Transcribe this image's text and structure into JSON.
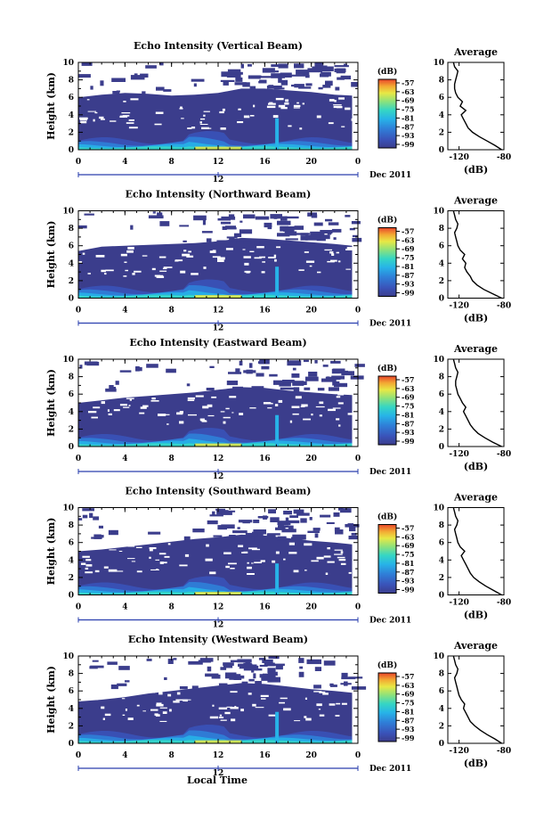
{
  "figure": {
    "xlabel": "Local Time",
    "ylabel": "Height (km)",
    "date_label": "Dec 2011",
    "colorbar_unit": "(dB)",
    "avg_title": "Average",
    "avg_xlabel": "(dB)"
  },
  "chart_data": [
    {
      "type": "heatmap",
      "title": "Echo Intensity (Vertical Beam)",
      "xlabel": "",
      "ylabel": "Height (km)",
      "x_ticks": [
        "0",
        "4",
        "8",
        "12",
        "16",
        "20",
        "0"
      ],
      "y_ticks": [
        "0",
        "2",
        "4",
        "6",
        "8",
        "10"
      ],
      "xlim": [
        0,
        24
      ],
      "ylim": [
        0,
        10
      ],
      "date_tick": "12",
      "date_label": "Dec 2011",
      "colorbar": {
        "unit": "(dB)",
        "ticks": [
          "-57",
          "-63",
          "-69",
          "-75",
          "-81",
          "-87",
          "-93",
          "-99"
        ]
      },
      "cloud_top_km": {
        "x": [
          0,
          2,
          4,
          6,
          8,
          10,
          12,
          14,
          16,
          18,
          20,
          22,
          23.5
        ],
        "y": [
          6.0,
          6.3,
          6.5,
          6.4,
          6.2,
          6.3,
          6.5,
          7.0,
          7.0,
          6.8,
          6.6,
          6.3,
          6.2
        ]
      },
      "average_profile": {
        "xlabel": "(dB)",
        "x_ticks": [
          "-120",
          "-80"
        ],
        "xlim": [
          -130,
          -80
        ],
        "height_km": [
          0,
          0.5,
          1,
          1.5,
          2,
          2.5,
          3,
          3.5,
          4,
          4.5,
          5,
          5.5,
          6,
          6.5,
          7,
          7.5,
          8,
          8.5,
          9,
          9.5,
          10
        ],
        "db": [
          -82,
          -88,
          -95,
          -102,
          -108,
          -112,
          -114,
          -116,
          -118,
          -114,
          -119,
          -117,
          -121,
          -123,
          -124,
          -124,
          -123,
          -122,
          -121,
          -124,
          -125
        ]
      }
    },
    {
      "type": "heatmap",
      "title": "Echo Intensity (Northward Beam)",
      "xlabel": "",
      "ylabel": "Height (km)",
      "x_ticks": [
        "0",
        "4",
        "8",
        "12",
        "16",
        "20",
        "0"
      ],
      "y_ticks": [
        "0",
        "2",
        "4",
        "6",
        "8",
        "10"
      ],
      "xlim": [
        0,
        24
      ],
      "ylim": [
        0,
        10
      ],
      "date_tick": "12",
      "date_label": "Dec 2011",
      "colorbar": {
        "unit": "(dB)",
        "ticks": [
          "-57",
          "-63",
          "-69",
          "-75",
          "-81",
          "-87",
          "-93",
          "-99"
        ]
      },
      "cloud_top_km": {
        "x": [
          0,
          2,
          4,
          6,
          8,
          10,
          12,
          14,
          16,
          18,
          20,
          22,
          23.5
        ],
        "y": [
          5.4,
          5.9,
          6.0,
          6.1,
          6.2,
          6.3,
          6.5,
          6.9,
          6.8,
          6.6,
          6.4,
          6.2,
          6.0
        ]
      },
      "average_profile": {
        "xlabel": "(dB)",
        "x_ticks": [
          "-120",
          "-80"
        ],
        "xlim": [
          -130,
          -80
        ],
        "height_km": [
          0,
          0.5,
          1,
          1.5,
          2,
          2.5,
          3,
          3.5,
          4,
          4.5,
          5,
          5.5,
          6,
          6.5,
          7,
          7.5,
          8,
          8.5,
          9,
          9.5,
          10
        ],
        "db": [
          -82,
          -90,
          -98,
          -104,
          -108,
          -110,
          -113,
          -115,
          -114,
          -117,
          -115,
          -119,
          -121,
          -122,
          -123,
          -124,
          -122,
          -121,
          -123,
          -124,
          -125
        ]
      }
    },
    {
      "type": "heatmap",
      "title": "Echo Intensity (Eastward Beam)",
      "xlabel": "",
      "ylabel": "Height (km)",
      "x_ticks": [
        "0",
        "4",
        "8",
        "12",
        "16",
        "20",
        "0"
      ],
      "y_ticks": [
        "0",
        "2",
        "4",
        "6",
        "8",
        "10"
      ],
      "xlim": [
        0,
        24
      ],
      "ylim": [
        0,
        10
      ],
      "date_tick": "12",
      "date_label": "Dec 2011",
      "colorbar": {
        "unit": "(dB)",
        "ticks": [
          "-57",
          "-63",
          "-69",
          "-75",
          "-81",
          "-87",
          "-93",
          "-99"
        ]
      },
      "cloud_top_km": {
        "x": [
          0,
          2,
          4,
          6,
          8,
          10,
          12,
          14,
          16,
          18,
          20,
          22,
          23.5
        ],
        "y": [
          5.0,
          5.3,
          5.6,
          5.8,
          6.0,
          6.2,
          6.5,
          6.8,
          6.7,
          6.4,
          6.2,
          6.0,
          5.9
        ]
      },
      "average_profile": {
        "xlabel": "(dB)",
        "x_ticks": [
          "-120",
          "-80"
        ],
        "xlim": [
          -130,
          -80
        ],
        "height_km": [
          0,
          0.5,
          1,
          1.5,
          2,
          2.5,
          3,
          3.5,
          4,
          4.5,
          5,
          5.5,
          6,
          6.5,
          7,
          7.5,
          8,
          8.5,
          9,
          9.5,
          10
        ],
        "db": [
          -82,
          -90,
          -97,
          -103,
          -107,
          -110,
          -112,
          -114,
          -116,
          -114,
          -117,
          -119,
          -121,
          -122,
          -123,
          -123,
          -122,
          -121,
          -123,
          -124,
          -125
        ]
      }
    },
    {
      "type": "heatmap",
      "title": "Echo Intensity (Southward Beam)",
      "xlabel": "",
      "ylabel": "Height (km)",
      "x_ticks": [
        "0",
        "4",
        "8",
        "12",
        "16",
        "20",
        "0"
      ],
      "y_ticks": [
        "0",
        "2",
        "4",
        "6",
        "8",
        "10"
      ],
      "xlim": [
        0,
        24
      ],
      "ylim": [
        0,
        10
      ],
      "date_tick": "12",
      "date_label": "Dec 2011",
      "colorbar": {
        "unit": "(dB)",
        "ticks": [
          "-57",
          "-63",
          "-69",
          "-75",
          "-81",
          "-87",
          "-93",
          "-99"
        ]
      },
      "cloud_top_km": {
        "x": [
          0,
          2,
          4,
          6,
          8,
          10,
          12,
          14,
          16,
          18,
          20,
          22,
          23.5
        ],
        "y": [
          5.0,
          5.2,
          5.5,
          5.8,
          6.1,
          6.4,
          6.6,
          6.9,
          6.8,
          6.5,
          6.2,
          6.0,
          5.8
        ]
      },
      "average_profile": {
        "xlabel": "(dB)",
        "x_ticks": [
          "-120",
          "-80"
        ],
        "xlim": [
          -130,
          -80
        ],
        "height_km": [
          0,
          0.5,
          1,
          1.5,
          2,
          2.5,
          3,
          3.5,
          4,
          4.5,
          5,
          5.5,
          6,
          6.5,
          7,
          7.5,
          8,
          8.5,
          9,
          9.5,
          10
        ],
        "db": [
          -82,
          -89,
          -96,
          -102,
          -107,
          -110,
          -112,
          -114,
          -116,
          -118,
          -115,
          -119,
          -121,
          -122,
          -123,
          -124,
          -122,
          -121,
          -123,
          -124,
          -125
        ]
      }
    },
    {
      "type": "heatmap",
      "title": "Echo Intensity (Westward Beam)",
      "xlabel": "Local Time",
      "ylabel": "Height (km)",
      "x_ticks": [
        "0",
        "4",
        "8",
        "12",
        "16",
        "20",
        "0"
      ],
      "y_ticks": [
        "0",
        "2",
        "4",
        "6",
        "8",
        "10"
      ],
      "xlim": [
        0,
        24
      ],
      "ylim": [
        0,
        10
      ],
      "date_tick": "12",
      "date_label": "Dec 2011",
      "colorbar": {
        "unit": "(dB)",
        "ticks": [
          "-57",
          "-63",
          "-69",
          "-75",
          "-81",
          "-87",
          "-93",
          "-99"
        ]
      },
      "cloud_top_km": {
        "x": [
          0,
          2,
          4,
          6,
          8,
          10,
          12,
          14,
          16,
          18,
          20,
          22,
          23.5
        ],
        "y": [
          4.8,
          5.0,
          5.3,
          5.7,
          6.0,
          6.3,
          6.6,
          6.9,
          6.8,
          6.5,
          6.2,
          6.0,
          5.8
        ]
      },
      "average_profile": {
        "xlabel": "(dB)",
        "x_ticks": [
          "-120",
          "-80"
        ],
        "xlim": [
          -130,
          -80
        ],
        "height_km": [
          0,
          0.5,
          1,
          1.5,
          2,
          2.5,
          3,
          3.5,
          4,
          4.5,
          5,
          5.5,
          6,
          6.5,
          7,
          7.5,
          8,
          8.5,
          9,
          9.5,
          10
        ],
        "db": [
          -82,
          -88,
          -95,
          -101,
          -106,
          -110,
          -112,
          -114,
          -116,
          -115,
          -118,
          -120,
          -121,
          -122,
          -123,
          -124,
          -122,
          -121,
          -123,
          -124,
          -125
        ]
      }
    }
  ],
  "colors": {
    "background_echo": "#3b3d8c",
    "colormap": [
      "#3b3d8c",
      "#3a52b8",
      "#2f7fd8",
      "#27b3e8",
      "#35d6c4",
      "#8fe27a",
      "#e8e845",
      "#f3a833",
      "#e8452a"
    ]
  }
}
